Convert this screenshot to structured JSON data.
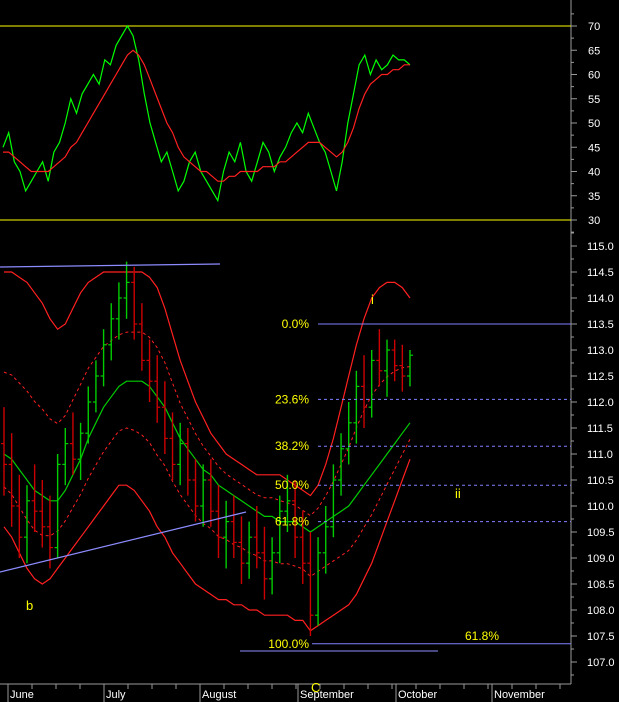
{
  "colors": {
    "background": "#000000",
    "price_bar_up": "#00cc00",
    "price_bar_down": "#cc0000",
    "bollinger": "#ff2020",
    "ma": "#00cc00",
    "rsi": "#00ff00",
    "rsi_signal": "#ff2020",
    "fib_lines": "#8080ff",
    "trendlines": "#9090ff",
    "guide_lines": "#ffff00",
    "text": "#ffffff",
    "fib_text": "#ffff00"
  },
  "chart_data": [
    {
      "type": "line",
      "panel": "indicator",
      "ylim": [
        25,
        75
      ],
      "yticks": [
        "70",
        "65",
        "60",
        "55",
        "50",
        "45",
        "40",
        "35",
        "30"
      ],
      "guide_levels": [
        70,
        30
      ],
      "series": [
        {
          "role": "oscillator",
          "values": [
            45,
            48,
            42,
            40,
            36,
            38,
            40,
            42,
            38,
            44,
            46,
            50,
            55,
            52,
            56,
            58,
            60,
            58,
            63,
            62,
            66,
            68,
            70,
            68,
            63,
            56,
            50,
            46,
            42,
            44,
            40,
            36,
            38,
            42,
            44,
            40,
            38,
            36,
            34,
            40,
            44,
            42,
            46,
            40,
            38,
            42,
            46,
            44,
            40,
            43,
            45,
            48,
            50,
            48,
            52,
            49,
            46,
            44,
            40,
            36,
            42,
            50,
            56,
            62,
            64,
            60,
            63,
            61,
            62,
            64,
            63,
            63,
            62
          ]
        },
        {
          "role": "signal",
          "values": [
            44,
            44,
            43,
            42,
            41,
            40,
            40,
            40,
            40,
            41,
            42,
            43,
            45,
            46,
            48,
            50,
            52,
            54,
            56,
            58,
            60,
            62,
            64,
            65,
            64,
            62,
            59,
            56,
            53,
            50,
            48,
            45,
            43,
            42,
            41,
            40,
            40,
            39,
            38,
            38,
            39,
            39,
            40,
            40,
            40,
            40,
            41,
            41,
            41,
            42,
            42,
            43,
            44,
            45,
            46,
            46,
            46,
            45,
            44,
            43,
            44,
            46,
            49,
            53,
            56,
            58,
            59,
            60,
            60,
            61,
            61,
            62,
            62
          ]
        }
      ]
    },
    {
      "type": "candlestick",
      "panel": "price",
      "ylim": [
        106.6,
        115.6
      ],
      "yticks": [
        "115.0",
        "114.5",
        "114.0",
        "113.5",
        "113.0",
        "112.5",
        "112.0",
        "111.5",
        "111.0",
        "110.5",
        "110.0",
        "109.5",
        "109.0",
        "108.5",
        "108.0",
        "107.5",
        "107.0"
      ],
      "xticks": [
        "June",
        "July",
        "August",
        "September",
        "October",
        "November"
      ],
      "bars": [
        [
          111.2,
          111.9,
          110.2,
          110.8
        ],
        [
          110.8,
          111.4,
          109.6,
          110.0
        ],
        [
          110.0,
          110.6,
          109.0,
          109.4
        ],
        [
          109.4,
          110.4,
          108.9,
          110.1
        ],
        [
          110.1,
          110.8,
          109.5,
          109.9
        ],
        [
          109.9,
          110.5,
          109.2,
          109.6
        ],
        [
          109.6,
          110.2,
          108.8,
          109.2
        ],
        [
          109.2,
          111.0,
          109.0,
          110.8
        ],
        [
          110.8,
          111.5,
          110.4,
          111.2
        ],
        [
          111.2,
          111.8,
          110.6,
          110.9
        ],
        [
          110.9,
          111.6,
          110.5,
          111.4
        ],
        [
          111.4,
          112.3,
          111.2,
          112.0
        ],
        [
          112.0,
          112.8,
          111.8,
          112.5
        ],
        [
          112.5,
          113.4,
          112.3,
          113.1
        ],
        [
          113.1,
          113.9,
          112.8,
          113.6
        ],
        [
          113.6,
          114.3,
          113.2,
          114.0
        ],
        [
          114.0,
          114.7,
          113.6,
          114.3
        ],
        [
          114.3,
          114.6,
          113.2,
          113.5
        ],
        [
          113.5,
          113.9,
          112.6,
          112.8
        ],
        [
          112.8,
          113.2,
          112.0,
          112.4
        ],
        [
          112.4,
          112.9,
          111.6,
          111.9
        ],
        [
          111.9,
          112.4,
          111.0,
          111.3
        ],
        [
          111.3,
          111.8,
          110.5,
          110.8
        ],
        [
          110.8,
          111.6,
          110.4,
          111.2
        ],
        [
          111.2,
          111.5,
          110.2,
          110.5
        ],
        [
          110.5,
          110.9,
          109.7,
          110.0
        ],
        [
          110.0,
          110.8,
          109.6,
          110.5
        ],
        [
          110.5,
          110.9,
          109.6,
          109.9
        ],
        [
          109.9,
          110.4,
          109.0,
          109.4
        ],
        [
          109.4,
          110.1,
          108.8,
          109.7
        ],
        [
          109.7,
          110.2,
          109.0,
          109.3
        ],
        [
          109.3,
          109.8,
          108.5,
          108.9
        ],
        [
          108.9,
          109.7,
          108.6,
          109.4
        ],
        [
          109.4,
          110.0,
          108.8,
          109.1
        ],
        [
          109.1,
          109.6,
          108.2,
          108.6
        ],
        [
          108.6,
          109.4,
          108.3,
          109.1
        ],
        [
          109.1,
          110.2,
          108.9,
          109.9
        ],
        [
          109.9,
          110.6,
          109.5,
          110.1
        ],
        [
          110.1,
          110.5,
          109.0,
          109.4
        ],
        [
          109.4,
          109.9,
          108.5,
          108.9
        ],
        [
          108.9,
          109.5,
          107.5,
          107.9
        ],
        [
          107.9,
          109.4,
          107.7,
          109.1
        ],
        [
          109.1,
          110.0,
          108.7,
          109.6
        ],
        [
          109.6,
          110.8,
          109.4,
          110.5
        ],
        [
          110.5,
          111.4,
          110.2,
          111.1
        ],
        [
          111.1,
          112.0,
          110.8,
          111.6
        ],
        [
          111.6,
          112.6,
          111.2,
          112.3
        ],
        [
          112.3,
          112.9,
          111.5,
          111.9
        ],
        [
          111.9,
          113.0,
          111.7,
          112.8
        ],
        [
          112.8,
          113.4,
          112.3,
          112.6
        ],
        [
          112.6,
          113.2,
          112.1,
          113.0
        ],
        [
          113.0,
          113.2,
          112.4,
          112.7
        ],
        [
          112.7,
          113.1,
          112.2,
          112.5
        ],
        [
          112.5,
          113.0,
          112.3,
          112.9
        ]
      ],
      "bollinger_upper": [
        114.5,
        114.5,
        114.4,
        114.3,
        114.1,
        113.9,
        113.6,
        113.4,
        113.5,
        113.8,
        114.1,
        114.3,
        114.4,
        114.5,
        114.5,
        114.5,
        114.5,
        114.5,
        114.5,
        114.4,
        114.2,
        113.8,
        113.3,
        112.8,
        112.4,
        112.0,
        111.7,
        111.4,
        111.2,
        111.0,
        110.9,
        110.8,
        110.7,
        110.6,
        110.6,
        110.6,
        110.6,
        110.5,
        110.4,
        110.3,
        110.2,
        110.4,
        110.8,
        111.3,
        111.9,
        112.5,
        113.1,
        113.6,
        114.0,
        114.2,
        114.3,
        114.3,
        114.2,
        114.0
      ],
      "bollinger_mid": [
        111.0,
        110.9,
        110.7,
        110.5,
        110.3,
        110.2,
        110.1,
        110.1,
        110.3,
        110.6,
        110.9,
        111.3,
        111.6,
        111.9,
        112.1,
        112.3,
        112.4,
        112.4,
        112.4,
        112.3,
        112.1,
        111.9,
        111.6,
        111.3,
        111.1,
        110.9,
        110.7,
        110.6,
        110.4,
        110.3,
        110.2,
        110.1,
        110.0,
        109.9,
        109.8,
        109.8,
        109.7,
        109.7,
        109.7,
        109.6,
        109.5,
        109.6,
        109.7,
        109.8,
        109.9,
        110.0,
        110.2,
        110.4,
        110.6,
        110.8,
        111.0,
        111.2,
        111.4,
        111.6
      ],
      "bollinger_lower": [
        109.6,
        109.4,
        109.1,
        108.8,
        108.6,
        108.5,
        108.6,
        108.8,
        109.0,
        109.2,
        109.4,
        109.6,
        109.8,
        110.0,
        110.2,
        110.4,
        110.4,
        110.3,
        110.1,
        109.9,
        109.6,
        109.4,
        109.1,
        108.9,
        108.7,
        108.5,
        108.4,
        108.3,
        108.2,
        108.2,
        108.1,
        108.1,
        108.0,
        108.0,
        107.9,
        107.9,
        107.9,
        107.9,
        107.8,
        107.8,
        107.6,
        107.7,
        107.8,
        107.9,
        108.0,
        108.1,
        108.3,
        108.6,
        108.9,
        109.3,
        109.7,
        110.1,
        110.5,
        110.9
      ]
    }
  ],
  "fib_levels": [
    {
      "label": "0.0%",
      "price": 113.5
    },
    {
      "label": "23.6%",
      "price": 112.05
    },
    {
      "label": "38.2%",
      "price": 111.15
    },
    {
      "label": "50.0%",
      "price": 110.4
    },
    {
      "label": "61.8%",
      "price": 109.7
    },
    {
      "label": "100.0%",
      "price": 107.35
    }
  ],
  "ext_label": "61.8%",
  "wave_labels": {
    "b": "b",
    "i": "i",
    "ii": "ii",
    "c": "C"
  }
}
